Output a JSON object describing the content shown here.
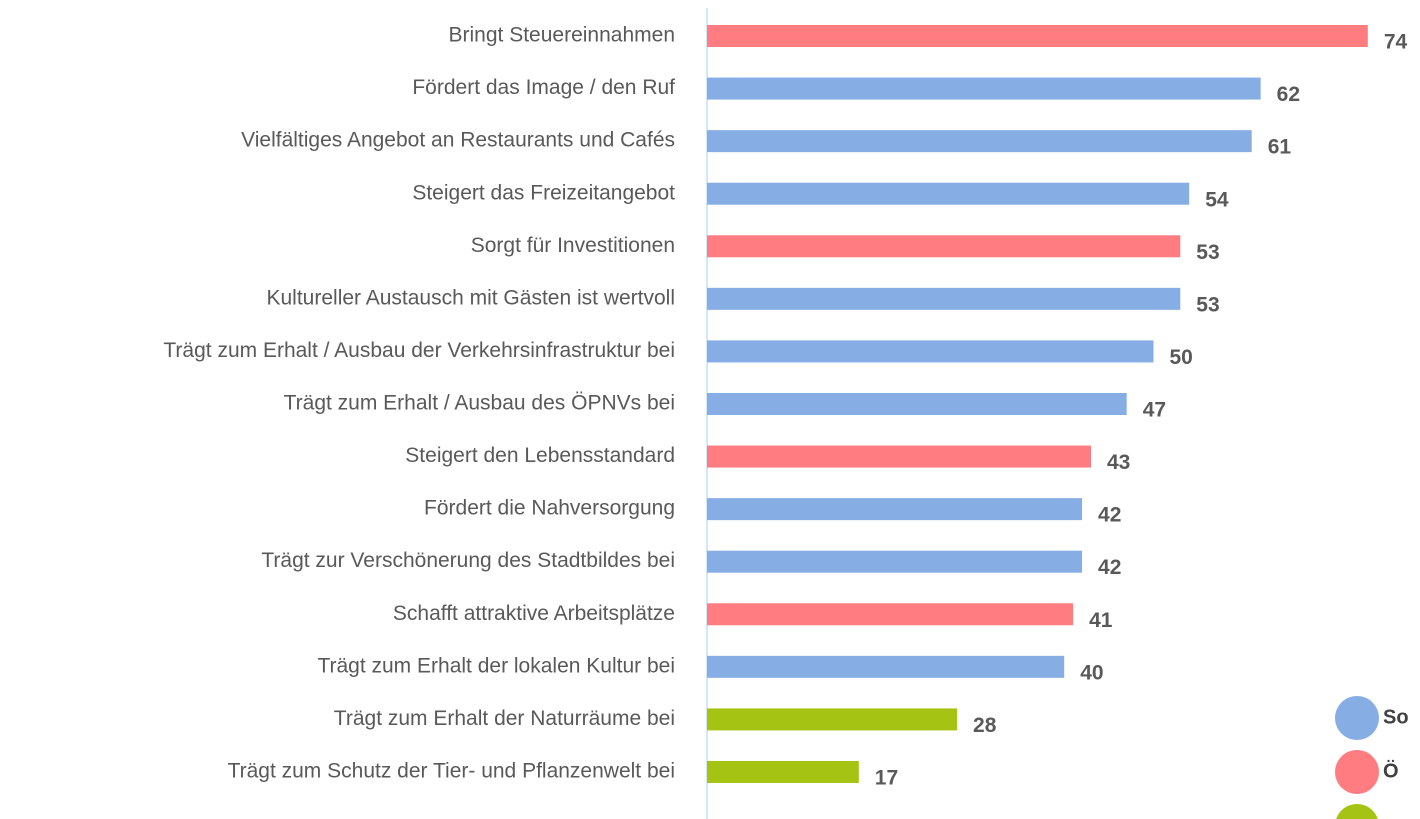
{
  "chart_data": {
    "type": "bar",
    "categories": [
      "Bringt Steuereinnahmen",
      "Fördert das Image / den Ruf",
      "Vielfältiges Angebot an Restaurants und Cafés",
      "Steigert das Freizeitangebot",
      "Sorgt für Investitionen",
      "Kultureller Austausch mit Gästen ist wertvoll",
      "Trägt zum Erhalt / Ausbau der Verkehrsinfrastruktur bei",
      "Trägt zum Erhalt / Ausbau des ÖPNVs bei",
      "Steigert den Lebensstandard",
      "Fördert die Nahversorgung",
      "Trägt zur Verschönerung des Stadtbildes bei",
      "Schafft attraktive Arbeitsplätze",
      "Trägt zum Erhalt der lokalen Kultur bei",
      "Trägt zum Erhalt der Naturräume bei",
      "Trägt zum Schutz der Tier- und Pflanzenwelt bei"
    ],
    "values": [
      74,
      62,
      61,
      54,
      53,
      53,
      50,
      47,
      43,
      42,
      42,
      41,
      40,
      28,
      17
    ],
    "colors": [
      "#ff7c80",
      "#86aee5",
      "#86aee5",
      "#86aee5",
      "#ff7c80",
      "#86aee5",
      "#86aee5",
      "#86aee5",
      "#ff7c80",
      "#86aee5",
      "#86aee5",
      "#ff7c80",
      "#86aee5",
      "#a5c312",
      "#a5c312"
    ],
    "legend": [
      {
        "label": "So",
        "color": "#86aee5"
      },
      {
        "label": "Ö",
        "color": "#ff7c80"
      },
      {
        "color": "#a5c312"
      }
    ]
  }
}
